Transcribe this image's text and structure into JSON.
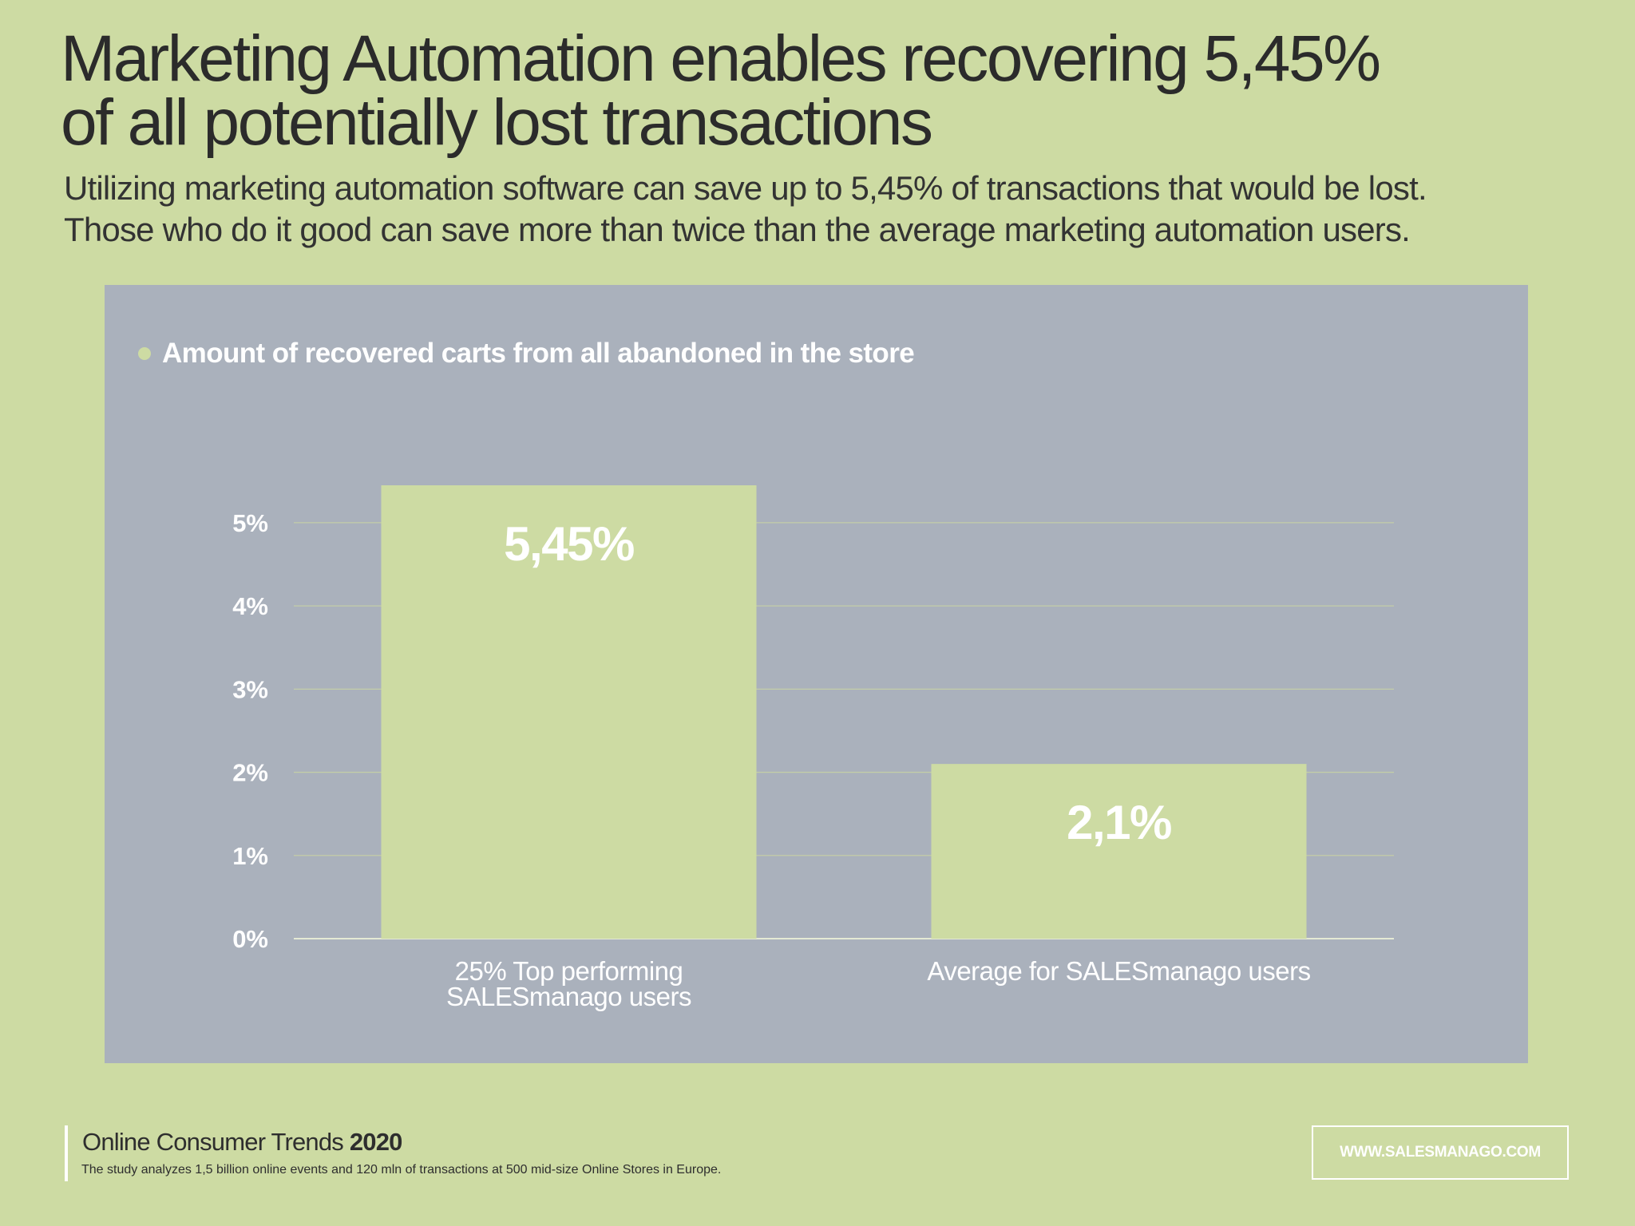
{
  "title": {
    "line1": "Marketing Automation enables recovering 5,45%",
    "line2": "of all potentially lost transactions"
  },
  "subtitle": {
    "line1": "Utilizing marketing automation software can save up to 5,45% of transactions that would be lost.",
    "line2": "Those who do it good can save more than twice than the average marketing automation users."
  },
  "colors": {
    "background": "#cddba3",
    "panel": "#aab1bc",
    "bar": "#cddba3",
    "gridline": "#c3cda8",
    "label_white": "#ffffff"
  },
  "chart_data": {
    "type": "bar",
    "title": "",
    "legend": "Amount of recovered carts from all abandoned in the store",
    "legend_position": "top-left",
    "categories": [
      [
        "25% Top performing",
        "SALESmanago users"
      ],
      [
        "Average for SALESmanago users"
      ]
    ],
    "values": [
      5.45,
      2.1
    ],
    "data_labels": [
      "5,45%",
      "2,1%"
    ],
    "yticks": [
      0,
      1,
      2,
      3,
      4,
      5
    ],
    "ytick_labels": [
      "0%",
      "1%",
      "2%",
      "3%",
      "4%",
      "5%"
    ],
    "ylim": [
      0,
      5.45
    ],
    "xlabel": "",
    "ylabel": "",
    "grid": true
  },
  "footer": {
    "title": "Online Consumer Trends",
    "year": "2020",
    "note": "The study analyzes 1,5 billion online events and 120 mln of transactions at 500 mid-size Online Stores in Europe.",
    "website": "WWW.SALESMANAGO.COM"
  }
}
